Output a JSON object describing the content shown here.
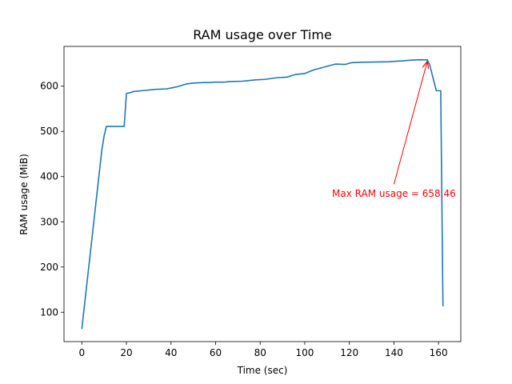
{
  "chart_data": {
    "type": "line",
    "title": "RAM usage over Time",
    "xlabel": "Time (sec)",
    "ylabel": "RAM usage (MiB)",
    "xlim": [
      -8,
      170
    ],
    "ylim": [
      35,
      688
    ],
    "xticks": [
      0,
      20,
      40,
      60,
      80,
      100,
      120,
      140,
      160
    ],
    "yticks": [
      100,
      200,
      300,
      400,
      500,
      600
    ],
    "grid": false,
    "legend": "none",
    "colors": {
      "line": "#1f77b4",
      "annotation": "#ff0000",
      "axes": "#000000"
    },
    "series": [
      {
        "x": [
          0,
          9,
          10,
          11,
          19,
          20,
          22,
          23,
          25,
          27,
          33,
          38,
          43,
          47,
          50,
          55,
          57,
          60,
          64,
          66,
          72,
          78,
          82,
          88,
          92,
          96,
          100,
          104,
          110,
          113,
          114,
          118,
          121,
          126,
          138,
          140,
          144,
          146,
          149,
          152,
          155,
          156,
          159,
          161,
          162
        ],
        "y": [
          63,
          460,
          490,
          511,
          511,
          584,
          586,
          588,
          589,
          590,
          593,
          594,
          599,
          605,
          607,
          608,
          608,
          609,
          609,
          610,
          611,
          614,
          615,
          619,
          620,
          626,
          628,
          636,
          644,
          648,
          649,
          648,
          652,
          653,
          654,
          655,
          656,
          657,
          658,
          658.46,
          658,
          648,
          590,
          590,
          113
        ]
      }
    ],
    "annotations": [
      {
        "text": "Max RAM usage = 658.46",
        "point": [
          155,
          658.46
        ],
        "text_anchor": [
          140,
          362
        ]
      }
    ]
  }
}
